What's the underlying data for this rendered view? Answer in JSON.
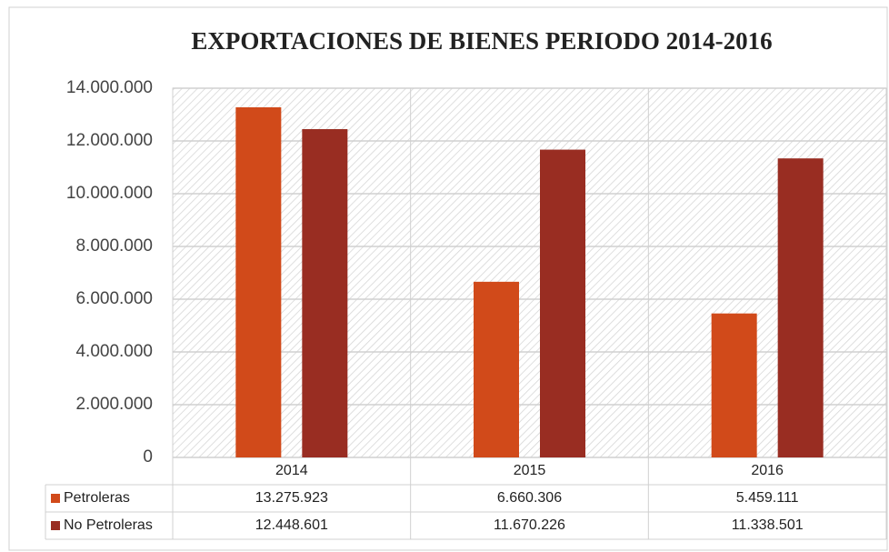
{
  "chart_data": {
    "type": "bar",
    "title": "EXPORTACIONES DE BIENES PERIODO 2014-2016",
    "categories": [
      "2014",
      "2015",
      "2016"
    ],
    "series": [
      {
        "name": "Petroleras",
        "color": "#d14a1a",
        "values": [
          13275923,
          6660306,
          5459111
        ],
        "value_labels": [
          "13.275.923",
          "6.660.306",
          "5.459.111"
        ]
      },
      {
        "name": "No Petroleras",
        "color": "#992d22",
        "values": [
          12448601,
          11670226,
          11338501
        ],
        "value_labels": [
          "12.448.601",
          "11.670.226",
          "11.338.501"
        ]
      }
    ],
    "ylim": [
      0,
      14000000
    ],
    "yticks": [
      0,
      {
        "value": 2000000,
        "label": "2.000.000"
      },
      {
        "value": 4000000,
        "label": "4.000.000"
      },
      {
        "value": 6000000,
        "label": "6.000.000"
      },
      {
        "value": 8000000,
        "label": "8.000.000"
      },
      {
        "value": 10000000,
        "label": "10.000.000"
      },
      {
        "value": 12000000,
        "label": "12.000.000"
      },
      {
        "value": 14000000,
        "label": "14.000.000"
      }
    ],
    "grid": true
  }
}
